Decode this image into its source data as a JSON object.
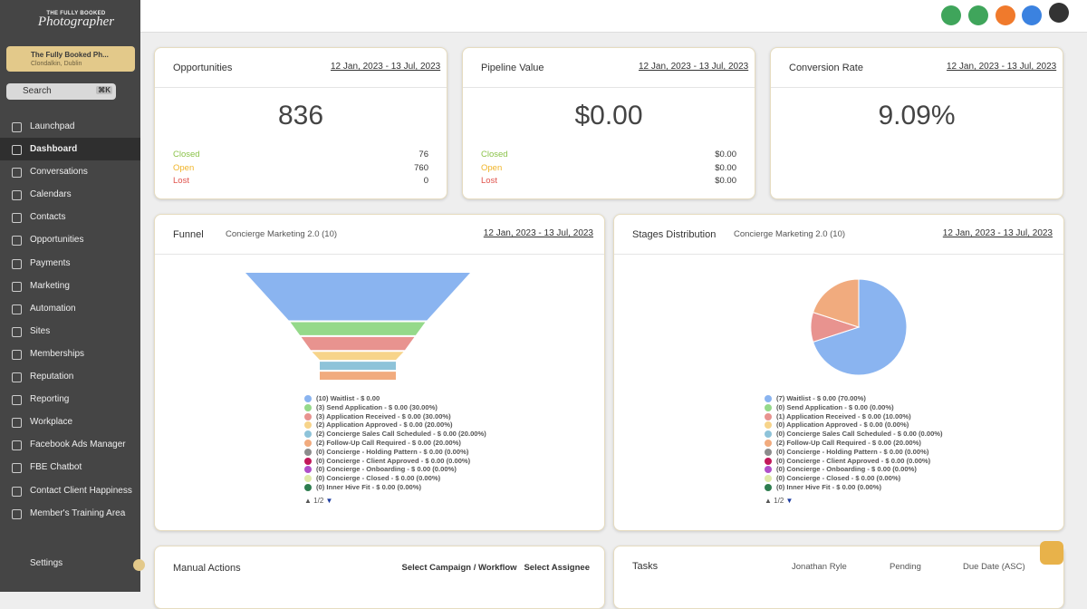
{
  "sidebar": {
    "brand_top": "THE FULLY BOOKED",
    "brand_script": "Photographer",
    "account": {
      "name": "The Fully Booked Ph...",
      "location": "Clondalkin, Dublin"
    },
    "search": "Search",
    "shortcut": "⌘K",
    "nav": [
      "Launchpad",
      "Dashboard",
      "Conversations",
      "Calendars",
      "Contacts",
      "Opportunities",
      "Payments",
      "Marketing",
      "Automation",
      "Sites",
      "Memberships",
      "Reputation",
      "Reporting",
      "Workplace",
      "Facebook Ads Manager",
      "FBE Chatbot",
      "Contact Client Happiness",
      "Member's Training Area"
    ],
    "settings": "Settings"
  },
  "cards": [
    {
      "title": "Opportunities",
      "date": "12 Jan, 2023 - 13 Jul, 2023",
      "value": "836",
      "rows": [
        {
          "label": "Closed",
          "value": "76"
        },
        {
          "label": "Open",
          "value": "760"
        },
        {
          "label": "Lost",
          "value": "0"
        }
      ]
    },
    {
      "title": "Pipeline Value",
      "date": "12 Jan, 2023 - 13 Jul, 2023",
      "value": "$0.00",
      "rows": [
        {
          "label": "Closed",
          "value": "$0.00"
        },
        {
          "label": "Open",
          "value": "$0.00"
        },
        {
          "label": "Lost",
          "value": "$0.00"
        }
      ]
    },
    {
      "title": "Conversion Rate",
      "date": "12 Jan, 2023 - 13 Jul, 2023",
      "value": "9.09%"
    }
  ],
  "funnel": {
    "title": "Funnel",
    "campaign": "Concierge Marketing 2.0 (10)",
    "date": "12 Jan, 2023 - 13 Jul, 2023",
    "page": "1/2",
    "items": [
      {
        "label": "(10) Waitlist - $ 0.00",
        "count": 10,
        "color": "#8ab4f0"
      },
      {
        "label": "(3) Send Application - $ 0.00 (30.00%)",
        "count": 3,
        "color": "#95d98a"
      },
      {
        "label": "(3) Application Received - $ 0.00 (30.00%)",
        "count": 3,
        "color": "#e8938f"
      },
      {
        "label": "(2) Application Approved - $ 0.00 (20.00%)",
        "count": 2,
        "color": "#f7d48a"
      },
      {
        "label": "(2) Concierge Sales Call Scheduled - $ 0.00 (20.00%)",
        "count": 2,
        "color": "#8ec3d9"
      },
      {
        "label": "(2) Follow-Up Call Required - $ 0.00 (20.00%)",
        "count": 2,
        "color": "#f1ab7e"
      },
      {
        "label": "(0) Concierge - Holding Pattern - $ 0.00 (0.00%)",
        "count": 0,
        "color": "#8c8c8c"
      },
      {
        "label": "(0) Concierge - Client Approved - $ 0.00 (0.00%)",
        "count": 0,
        "color": "#c2185b"
      },
      {
        "label": "(0) Concierge - Onboarding - $ 0.00 (0.00%)",
        "count": 0,
        "color": "#b04fc9"
      },
      {
        "label": "(0) Concierge - Closed - $ 0.00 (0.00%)",
        "count": 0,
        "color": "#dfeaa8"
      },
      {
        "label": "(0) Inner Hive Fit - $ 0.00 (0.00%)",
        "count": 0,
        "color": "#2e7d4f"
      }
    ]
  },
  "stages": {
    "title": "Stages Distribution",
    "campaign": "Concierge Marketing 2.0 (10)",
    "date": "12 Jan, 2023 - 13 Jul, 2023",
    "page": "1/2",
    "items": [
      {
        "label": "(7) Waitlist - $ 0.00 (70.00%)",
        "percent": 70,
        "color": "#8ab4f0"
      },
      {
        "label": "(0) Send Application - $ 0.00 (0.00%)",
        "percent": 0,
        "color": "#95d98a"
      },
      {
        "label": "(1) Application Received - $ 0.00 (10.00%)",
        "percent": 10,
        "color": "#e8938f"
      },
      {
        "label": "(0) Application Approved - $ 0.00 (0.00%)",
        "percent": 0,
        "color": "#f7d48a"
      },
      {
        "label": "(0) Concierge Sales Call Scheduled - $ 0.00 (0.00%)",
        "percent": 0,
        "color": "#8ec3d9"
      },
      {
        "label": "(2) Follow-Up Call Required - $ 0.00 (20.00%)",
        "percent": 20,
        "color": "#f1ab7e"
      },
      {
        "label": "(0) Concierge - Holding Pattern - $ 0.00 (0.00%)",
        "percent": 0,
        "color": "#8c8c8c"
      },
      {
        "label": "(0) Concierge - Client Approved - $ 0.00 (0.00%)",
        "percent": 0,
        "color": "#c2185b"
      },
      {
        "label": "(0) Concierge - Onboarding - $ 0.00 (0.00%)",
        "percent": 0,
        "color": "#b04fc9"
      },
      {
        "label": "(0) Concierge - Closed - $ 0.00 (0.00%)",
        "percent": 0,
        "color": "#dfeaa8"
      },
      {
        "label": "(0) Inner Hive Fit - $ 0.00 (0.00%)",
        "percent": 0,
        "color": "#2e7d4f"
      }
    ]
  },
  "manual_actions": {
    "title": "Manual Actions",
    "filters": [
      "Select Campaign / Workflow",
      "Select Assignee"
    ]
  },
  "tasks": {
    "title": "Tasks",
    "filters": [
      "Jonathan Ryle",
      "Pending",
      "Due Date (ASC)"
    ]
  }
}
